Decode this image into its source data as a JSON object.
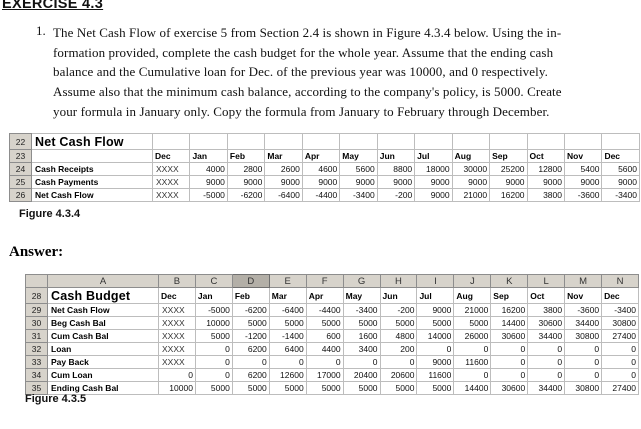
{
  "page": {
    "header": "EXERCISE 4.3",
    "problem_number": "1.",
    "problem_text": "The Net Cash Flow of exercise 5 from Section 2.4 is shown in Figure 4.3.4 below. Using the in-\nformation provided, complete the cash budget for the whole year. Assume that the ending cash\nbalance and the Cumulative loan for Dec. of the previous year was 10000, and 0 respectively.\nAssume also that the minimum cash balance, according to the company's policy, is 5000. Create\nyour formula in January only. Copy the formula from January to February through December.",
    "answer_label": "Answer:"
  },
  "months": [
    "Dec",
    "Jan",
    "Feb",
    "Mar",
    "Apr",
    "May",
    "Jun",
    "Jul",
    "Aug",
    "Sep",
    "Oct",
    "Nov",
    "Dec"
  ],
  "figure_434": {
    "caption": "Figure 4.3.4",
    "title": "Net Cash Flow",
    "title_row_number": "22",
    "months_row_number": "23",
    "rows": [
      {
        "row_number": "24",
        "label": "Cash Receipts",
        "values": [
          "XXXX",
          "4000",
          "2800",
          "2600",
          "4600",
          "5600",
          "8800",
          "18000",
          "30000",
          "25200",
          "12800",
          "5400",
          "5600"
        ]
      },
      {
        "row_number": "25",
        "label": "Cash Payments",
        "values": [
          "XXXX",
          "9000",
          "9000",
          "9000",
          "9000",
          "9000",
          "9000",
          "9000",
          "9000",
          "9000",
          "9000",
          "9000",
          "9000"
        ]
      },
      {
        "row_number": "26",
        "label": "Net Cash Flow",
        "values": [
          "XXXX",
          "-5000",
          "-6200",
          "-6400",
          "-4400",
          "-3400",
          "-200",
          "9000",
          "21000",
          "16200",
          "3800",
          "-3600",
          "-3400"
        ]
      }
    ]
  },
  "figure_435": {
    "caption": "Figure 4.3.5",
    "title": "Cash Budget",
    "column_letters": [
      "A",
      "B",
      "C",
      "D",
      "E",
      "F",
      "G",
      "H",
      "I",
      "J",
      "K",
      "L",
      "M",
      "N"
    ],
    "highlighted_column": "D",
    "title_row_number": "28",
    "rows": [
      {
        "row_number": "29",
        "label": "Net Cash Flow",
        "values": [
          "XXXX",
          "-5000",
          "-6200",
          "-6400",
          "-4400",
          "-3400",
          "-200",
          "9000",
          "21000",
          "16200",
          "3800",
          "-3600",
          "-3400"
        ]
      },
      {
        "row_number": "30",
        "label": "Beg Cash Bal",
        "values": [
          "XXXX",
          "10000",
          "5000",
          "5000",
          "5000",
          "5000",
          "5000",
          "5000",
          "5000",
          "14400",
          "30600",
          "34400",
          "30800"
        ]
      },
      {
        "row_number": "31",
        "label": "Cum Cash Bal",
        "values": [
          "XXXX",
          "5000",
          "-1200",
          "-1400",
          "600",
          "1600",
          "4800",
          "14000",
          "26000",
          "30600",
          "34400",
          "30800",
          "27400"
        ]
      },
      {
        "row_number": "32",
        "label": "Loan",
        "values": [
          "XXXX",
          "0",
          "6200",
          "6400",
          "4400",
          "3400",
          "200",
          "0",
          "0",
          "0",
          "0",
          "0",
          "0"
        ]
      },
      {
        "row_number": "33",
        "label": "Pay Back",
        "values": [
          "XXXX",
          "0",
          "0",
          "0",
          "0",
          "0",
          "0",
          "9000",
          "11600",
          "0",
          "0",
          "0",
          "0"
        ]
      },
      {
        "row_number": "34",
        "label": "Cum Loan",
        "values": [
          "0",
          "0",
          "6200",
          "12600",
          "17000",
          "20400",
          "20600",
          "11600",
          "0",
          "0",
          "0",
          "0",
          "0"
        ]
      },
      {
        "row_number": "35",
        "label": "Ending Cash Bal",
        "values": [
          "10000",
          "5000",
          "5000",
          "5000",
          "5000",
          "5000",
          "5000",
          "5000",
          "14400",
          "30600",
          "34400",
          "30800",
          "27400"
        ]
      }
    ]
  }
}
